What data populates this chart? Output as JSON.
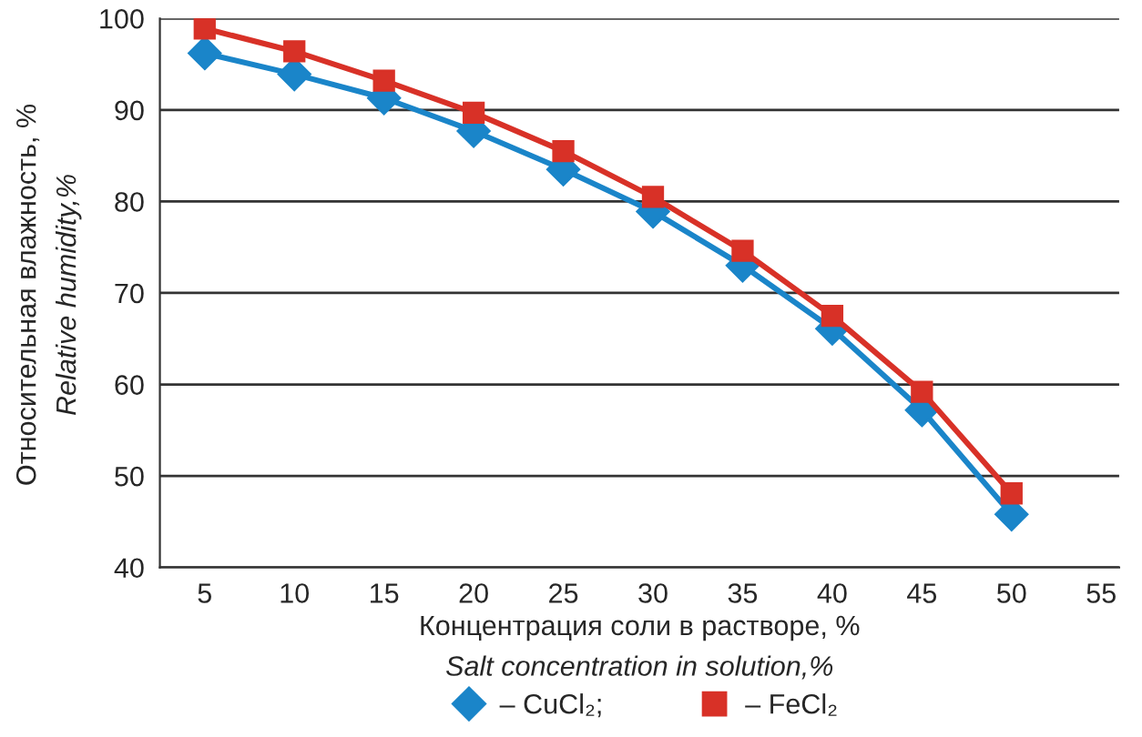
{
  "chart_data": {
    "type": "line",
    "xlabel": "Концентрация соли в растворе, %\nSalt concentration in solution,%",
    "ylabel": "Относительная влажность, %\nRelative humidity,%",
    "x": [
      5,
      10,
      15,
      20,
      25,
      30,
      35,
      40,
      45,
      50
    ],
    "series": [
      {
        "name": "– CuCl₂;",
        "color": "#1a85c9",
        "marker": "diamond",
        "values": [
          96.2,
          93.9,
          91.3,
          87.7,
          83.5,
          78.9,
          73.0,
          66.1,
          57.2,
          45.8
        ]
      },
      {
        "name": "– FeCl₂",
        "color": "#d83127",
        "marker": "square",
        "values": [
          98.9,
          96.4,
          93.2,
          89.7,
          85.5,
          80.5,
          74.6,
          67.5,
          59.2,
          48.1
        ]
      }
    ],
    "xlim": [
      2.5,
      56
    ],
    "xticks": [
      5,
      10,
      15,
      20,
      25,
      30,
      35,
      40,
      45,
      50,
      55
    ],
    "ylim": [
      40,
      100
    ],
    "yticks": [
      40,
      50,
      60,
      70,
      80,
      90,
      100
    ],
    "grid": "y",
    "legend": "bottom",
    "line_style": "solid"
  }
}
